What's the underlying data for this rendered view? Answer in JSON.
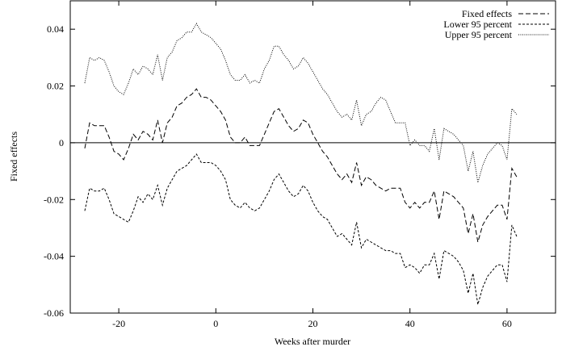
{
  "chart_data": {
    "type": "line",
    "title": "",
    "xlabel": "Weeks after murder",
    "ylabel": "Fixed effects",
    "xlim": [
      -30,
      70
    ],
    "ylim": [
      -0.06,
      0.05
    ],
    "xticks": [
      -20,
      0,
      20,
      40,
      60
    ],
    "xtick_labels": [
      "-20",
      "0",
      "20",
      "40",
      "60"
    ],
    "yticks": [
      -0.06,
      -0.04,
      -0.02,
      0,
      0.02,
      0.04
    ],
    "ytick_labels": [
      "-0.06",
      "-0.04",
      "-0.02",
      "0",
      "0.02",
      "0.04"
    ],
    "grid": false,
    "reference_line_y": 0,
    "legend_position": "top-right",
    "x": [
      -27,
      -26,
      -25,
      -24,
      -23,
      -22,
      -21,
      -20,
      -19,
      -18,
      -17,
      -16,
      -15,
      -14,
      -13,
      -12,
      -11,
      -10,
      -9,
      -8,
      -7,
      -6,
      -5,
      -4,
      -3,
      -2,
      -1,
      0,
      1,
      2,
      3,
      4,
      5,
      6,
      7,
      8,
      9,
      10,
      11,
      12,
      13,
      14,
      15,
      16,
      17,
      18,
      19,
      20,
      21,
      22,
      23,
      24,
      25,
      26,
      27,
      28,
      29,
      30,
      31,
      32,
      33,
      34,
      35,
      36,
      37,
      38,
      39,
      40,
      41,
      42,
      43,
      44,
      45,
      46,
      47,
      48,
      49,
      50,
      51,
      52,
      53,
      54,
      55,
      56,
      57,
      58,
      59,
      60,
      61,
      62
    ],
    "series": [
      {
        "name": "Fixed effects",
        "style": "dashed",
        "values": [
          -0.002,
          0.007,
          0.006,
          0.006,
          0.006,
          0.002,
          -0.003,
          -0.004,
          -0.006,
          -0.002,
          0.003,
          0.001,
          0.004,
          0.003,
          0.001,
          0.008,
          0.0,
          0.007,
          0.009,
          0.013,
          0.014,
          0.016,
          0.017,
          0.019,
          0.016,
          0.016,
          0.015,
          0.013,
          0.011,
          0.008,
          0.002,
          0.0,
          0.0,
          0.002,
          -0.001,
          -0.001,
          -0.001,
          0.003,
          0.007,
          0.011,
          0.012,
          0.009,
          0.006,
          0.004,
          0.005,
          0.008,
          0.007,
          0.003,
          0.0,
          -0.003,
          -0.005,
          -0.008,
          -0.011,
          -0.013,
          -0.011,
          -0.014,
          -0.007,
          -0.015,
          -0.012,
          -0.013,
          -0.015,
          -0.016,
          -0.017,
          -0.016,
          -0.016,
          -0.016,
          -0.021,
          -0.023,
          -0.021,
          -0.023,
          -0.021,
          -0.021,
          -0.017,
          -0.027,
          -0.017,
          -0.018,
          -0.019,
          -0.021,
          -0.023,
          -0.032,
          -0.025,
          -0.035,
          -0.029,
          -0.026,
          -0.024,
          -0.022,
          -0.022,
          -0.027,
          -0.009,
          -0.012
        ]
      },
      {
        "name": "Lower 95 percent",
        "style": "short-dashed",
        "values": [
          -0.024,
          -0.016,
          -0.017,
          -0.017,
          -0.016,
          -0.02,
          -0.025,
          -0.026,
          -0.027,
          -0.028,
          -0.024,
          -0.019,
          -0.021,
          -0.018,
          -0.02,
          -0.015,
          -0.022,
          -0.016,
          -0.013,
          -0.01,
          -0.009,
          -0.008,
          -0.006,
          -0.004,
          -0.007,
          -0.007,
          -0.007,
          -0.008,
          -0.01,
          -0.013,
          -0.02,
          -0.022,
          -0.023,
          -0.021,
          -0.023,
          -0.024,
          -0.023,
          -0.02,
          -0.017,
          -0.013,
          -0.011,
          -0.014,
          -0.017,
          -0.019,
          -0.018,
          -0.015,
          -0.017,
          -0.021,
          -0.024,
          -0.026,
          -0.027,
          -0.03,
          -0.033,
          -0.032,
          -0.034,
          -0.036,
          -0.028,
          -0.037,
          -0.034,
          -0.035,
          -0.036,
          -0.037,
          -0.038,
          -0.038,
          -0.039,
          -0.039,
          -0.044,
          -0.043,
          -0.044,
          -0.046,
          -0.043,
          -0.043,
          -0.039,
          -0.048,
          -0.038,
          -0.039,
          -0.04,
          -0.042,
          -0.045,
          -0.053,
          -0.046,
          -0.057,
          -0.051,
          -0.047,
          -0.045,
          -0.043,
          -0.043,
          -0.049,
          -0.029,
          -0.033
        ]
      },
      {
        "name": "Upper 95 percent",
        "style": "dotted",
        "values": [
          0.021,
          0.03,
          0.029,
          0.03,
          0.029,
          0.025,
          0.02,
          0.018,
          0.017,
          0.021,
          0.026,
          0.024,
          0.027,
          0.026,
          0.024,
          0.031,
          0.022,
          0.03,
          0.032,
          0.036,
          0.037,
          0.039,
          0.039,
          0.042,
          0.039,
          0.038,
          0.037,
          0.035,
          0.033,
          0.029,
          0.024,
          0.022,
          0.022,
          0.024,
          0.021,
          0.022,
          0.021,
          0.026,
          0.029,
          0.034,
          0.034,
          0.031,
          0.029,
          0.026,
          0.027,
          0.03,
          0.028,
          0.025,
          0.022,
          0.019,
          0.017,
          0.014,
          0.011,
          0.009,
          0.01,
          0.008,
          0.015,
          0.006,
          0.01,
          0.011,
          0.014,
          0.016,
          0.015,
          0.011,
          0.007,
          0.007,
          0.007,
          -0.001,
          0.001,
          -0.001,
          -0.001,
          -0.003,
          0.005,
          -0.006,
          0.005,
          0.004,
          0.003,
          0.001,
          -0.001,
          -0.01,
          -0.003,
          -0.014,
          -0.008,
          -0.004,
          -0.002,
          0.0,
          -0.001,
          -0.006,
          0.012,
          0.01
        ]
      }
    ]
  }
}
